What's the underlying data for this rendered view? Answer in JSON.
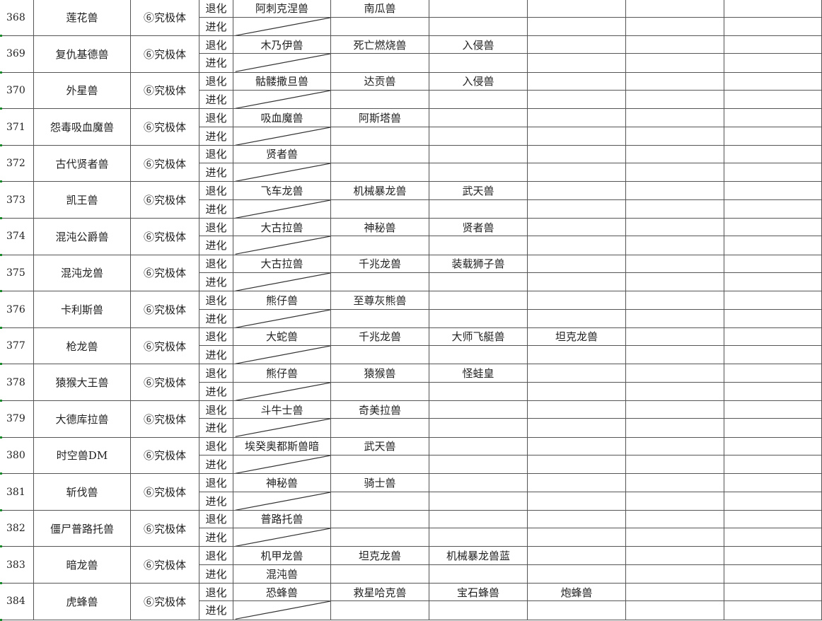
{
  "labels": {
    "devolve": "退化",
    "evolve": "进化"
  },
  "rows": [
    {
      "no": "368",
      "name": "莲花兽",
      "stage": "⑥究极体",
      "devolve": [
        "阿刺克涅兽",
        "南瓜兽",
        "",
        "",
        "",
        ""
      ],
      "evolve": [
        "",
        "",
        "",
        "",
        "",
        ""
      ]
    },
    {
      "no": "369",
      "name": "复仇基德兽",
      "stage": "⑥究极体",
      "devolve": [
        "木乃伊兽",
        "死亡燃烧兽",
        "入侵兽",
        "",
        "",
        ""
      ],
      "evolve": [
        "",
        "",
        "",
        "",
        "",
        ""
      ]
    },
    {
      "no": "370",
      "name": "外星兽",
      "stage": "⑥究极体",
      "devolve": [
        "骷髅撒旦兽",
        "达贡兽",
        "入侵兽",
        "",
        "",
        ""
      ],
      "evolve": [
        "",
        "",
        "",
        "",
        "",
        ""
      ]
    },
    {
      "no": "371",
      "name": "怨毒吸血魔兽",
      "stage": "⑥究极体",
      "devolve": [
        "吸血魔兽",
        "阿斯塔兽",
        "",
        "",
        "",
        ""
      ],
      "evolve": [
        "",
        "",
        "",
        "",
        "",
        ""
      ]
    },
    {
      "no": "372",
      "name": "古代贤者兽",
      "stage": "⑥究极体",
      "devolve": [
        "贤者兽",
        "",
        "",
        "",
        "",
        ""
      ],
      "evolve": [
        "",
        "",
        "",
        "",
        "",
        ""
      ]
    },
    {
      "no": "373",
      "name": "凯王兽",
      "stage": "⑥究极体",
      "devolve": [
        "飞车龙兽",
        "机械暴龙兽",
        "武天兽",
        "",
        "",
        ""
      ],
      "evolve": [
        "",
        "",
        "",
        "",
        "",
        ""
      ]
    },
    {
      "no": "374",
      "name": "混沌公爵兽",
      "stage": "⑥究极体",
      "devolve": [
        "大古拉兽",
        "神秘兽",
        "贤者兽",
        "",
        "",
        ""
      ],
      "evolve": [
        "",
        "",
        "",
        "",
        "",
        ""
      ]
    },
    {
      "no": "375",
      "name": "混沌龙兽",
      "stage": "⑥究极体",
      "devolve": [
        "大古拉兽",
        "千兆龙兽",
        "装载狮子兽",
        "",
        "",
        ""
      ],
      "evolve": [
        "",
        "",
        "",
        "",
        "",
        ""
      ]
    },
    {
      "no": "376",
      "name": "卡利斯兽",
      "stage": "⑥究极体",
      "devolve": [
        "熊仔兽",
        "至尊灰熊兽",
        "",
        "",
        "",
        ""
      ],
      "evolve": [
        "",
        "",
        "",
        "",
        "",
        ""
      ]
    },
    {
      "no": "377",
      "name": "枪龙兽",
      "stage": "⑥究极体",
      "devolve": [
        "大蛇兽",
        "千兆龙兽",
        "大师飞艇兽",
        "坦克龙兽",
        "",
        ""
      ],
      "evolve": [
        "",
        "",
        "",
        "",
        "",
        ""
      ]
    },
    {
      "no": "378",
      "name": "猿猴大王兽",
      "stage": "⑥究极体",
      "devolve": [
        "熊仔兽",
        "猿猴兽",
        "怪蛙皇",
        "",
        "",
        ""
      ],
      "evolve": [
        "",
        "",
        "",
        "",
        "",
        ""
      ]
    },
    {
      "no": "379",
      "name": "大德库拉兽",
      "stage": "⑥究极体",
      "devolve": [
        "斗牛士兽",
        "奇美拉兽",
        "",
        "",
        "",
        ""
      ],
      "evolve": [
        "",
        "",
        "",
        "",
        "",
        ""
      ]
    },
    {
      "no": "380",
      "name": "时空兽DM",
      "stage": "⑥究极体",
      "devolve": [
        "埃癸奥都斯兽暗",
        "武天兽",
        "",
        "",
        "",
        ""
      ],
      "evolve": [
        "",
        "",
        "",
        "",
        "",
        ""
      ]
    },
    {
      "no": "381",
      "name": "斩伐兽",
      "stage": "⑥究极体",
      "devolve": [
        "神秘兽",
        "骑士兽",
        "",
        "",
        "",
        ""
      ],
      "evolve": [
        "",
        "",
        "",
        "",
        "",
        ""
      ]
    },
    {
      "no": "382",
      "name": "僵尸普路托兽",
      "stage": "⑥究极体",
      "devolve": [
        "普路托兽",
        "",
        "",
        "",
        "",
        ""
      ],
      "evolve": [
        "",
        "",
        "",
        "",
        "",
        ""
      ]
    },
    {
      "no": "383",
      "name": "暗龙兽",
      "stage": "⑥究极体",
      "devolve": [
        "机甲龙兽",
        "坦克龙兽",
        "机械暴龙兽蓝",
        "",
        "",
        ""
      ],
      "evolve": [
        "混沌兽",
        "",
        "",
        "",
        "",
        ""
      ]
    },
    {
      "no": "384",
      "name": "虎蜂兽",
      "stage": "⑥究极体",
      "devolve": [
        "恐蜂兽",
        "救星哈克兽",
        "宝石蜂兽",
        "炮蜂兽",
        "",
        ""
      ],
      "evolve": [
        "",
        "",
        "",
        "",
        "",
        ""
      ]
    }
  ]
}
